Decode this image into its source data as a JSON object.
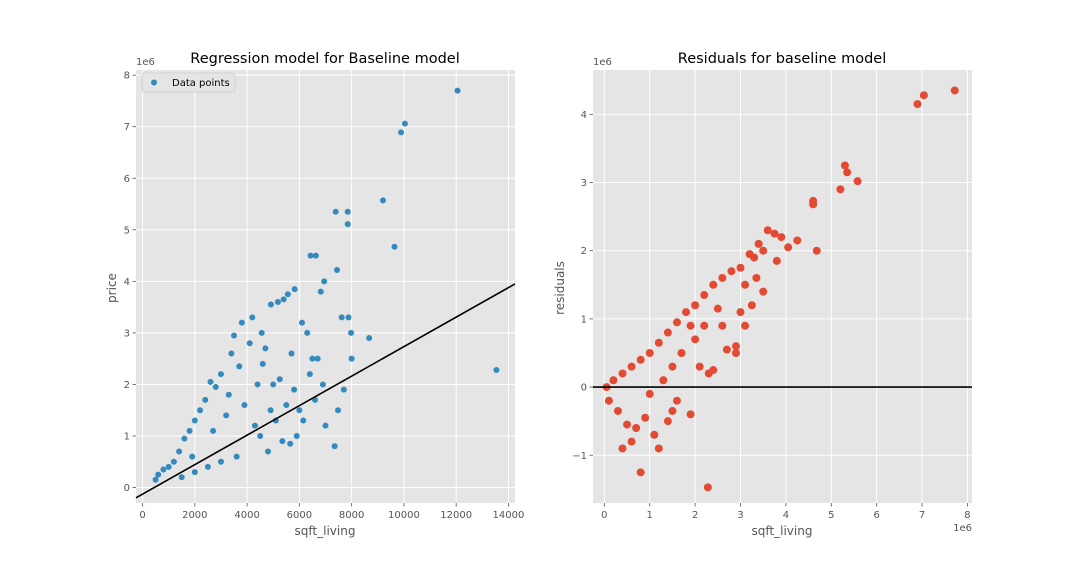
{
  "chart_data": [
    {
      "type": "scatter",
      "title": "Regression model for Baseline model",
      "xlabel": "sqft_living",
      "ylabel": "price",
      "y_offset_label": "1e6",
      "xlim": [
        -250,
        14250
      ],
      "ylim": [
        -0.3,
        8.1
      ],
      "x_ticks": [
        0,
        2000,
        4000,
        6000,
        8000,
        10000,
        12000,
        14000
      ],
      "x_tick_labels": [
        "0",
        "2000",
        "4000",
        "6000",
        "8000",
        "10000",
        "12000",
        "14000"
      ],
      "y_ticks": [
        0,
        1,
        2,
        3,
        4,
        5,
        6,
        7,
        8
      ],
      "y_tick_labels": [
        "0",
        "1",
        "2",
        "3",
        "4",
        "5",
        "6",
        "7",
        "8"
      ],
      "grid": true,
      "legend": {
        "entries": [
          "Data points"
        ],
        "placement": "top-left"
      },
      "series": [
        {
          "name": "Data points",
          "color": "#348abd",
          "points": [
            [
              12050,
              7.7
            ],
            [
              10040,
              7.06
            ],
            [
              9890,
              6.89
            ],
            [
              9200,
              5.57
            ],
            [
              7390,
              5.35
            ],
            [
              7850,
              5.35
            ],
            [
              7850,
              5.11
            ],
            [
              9640,
              4.67
            ],
            [
              6430,
              4.5
            ],
            [
              6630,
              4.5
            ],
            [
              7440,
              4.22
            ],
            [
              6950,
              4.0
            ],
            [
              6820,
              3.8
            ],
            [
              13540,
              2.28
            ],
            [
              8670,
              2.9
            ],
            [
              7620,
              3.3
            ],
            [
              7880,
              3.3
            ],
            [
              7980,
              3.0
            ],
            [
              8000,
              2.5
            ],
            [
              7700,
              1.9
            ],
            [
              7480,
              1.5
            ],
            [
              7350,
              0.8
            ],
            [
              7000,
              1.2
            ],
            [
              6900,
              2.0
            ],
            [
              6700,
              2.5
            ],
            [
              6500,
              2.5
            ],
            [
              6300,
              3.0
            ],
            [
              6100,
              3.2
            ],
            [
              5820,
              3.85
            ],
            [
              5560,
              3.75
            ],
            [
              5400,
              3.65
            ],
            [
              5180,
              3.6
            ],
            [
              4910,
              3.55
            ],
            [
              4560,
              3.0
            ],
            [
              4200,
              3.3
            ],
            [
              3800,
              3.2
            ],
            [
              3500,
              2.95
            ],
            [
              5100,
              1.3
            ],
            [
              5250,
              2.1
            ],
            [
              6150,
              1.3
            ],
            [
              5650,
              0.85
            ],
            [
              4800,
              0.7
            ],
            [
              5350,
              0.9
            ],
            [
              4600,
              2.4
            ],
            [
              4100,
              2.8
            ],
            [
              3700,
              2.35
            ],
            [
              3000,
              2.2
            ],
            [
              2800,
              1.95
            ],
            [
              2600,
              2.05
            ],
            [
              2400,
              1.7
            ],
            [
              2200,
              1.5
            ],
            [
              2000,
              1.3
            ],
            [
              1800,
              1.1
            ],
            [
              1600,
              0.95
            ],
            [
              1400,
              0.7
            ],
            [
              1200,
              0.5
            ],
            [
              1000,
              0.4
            ],
            [
              800,
              0.35
            ],
            [
              600,
              0.25
            ],
            [
              500,
              0.15
            ],
            [
              3300,
              1.8
            ],
            [
              3900,
              1.6
            ],
            [
              4300,
              1.2
            ],
            [
              4500,
              1.0
            ],
            [
              3600,
              0.6
            ],
            [
              3000,
              0.5
            ],
            [
              2500,
              0.4
            ],
            [
              2000,
              0.3
            ],
            [
              1500,
              0.2
            ],
            [
              3400,
              2.6
            ],
            [
              4400,
              2.0
            ],
            [
              5500,
              1.6
            ],
            [
              5800,
              1.9
            ],
            [
              6000,
              1.5
            ],
            [
              5900,
              1.0
            ],
            [
              4900,
              1.5
            ],
            [
              4700,
              2.7
            ],
            [
              3200,
              1.4
            ],
            [
              2700,
              1.1
            ],
            [
              1900,
              0.6
            ],
            [
              6400,
              2.2
            ],
            [
              6600,
              1.7
            ],
            [
              5700,
              2.6
            ],
            [
              5000,
              2.0
            ]
          ]
        },
        {
          "name": "",
          "type": "line",
          "color": "#000000",
          "points": [
            [
              -250,
              -0.2
            ],
            [
              14250,
              3.95
            ]
          ]
        }
      ]
    },
    {
      "type": "scatter",
      "title": "Residuals for baseline model",
      "xlabel": "sqft_living",
      "ylabel": "residuals",
      "x_offset_label": "1e6",
      "y_offset_label": "1e6",
      "xlim": [
        -0.25,
        8.1
      ],
      "ylim": [
        -1.7,
        4.65
      ],
      "x_ticks": [
        0,
        1,
        2,
        3,
        4,
        5,
        6,
        7,
        8
      ],
      "x_tick_labels": [
        "0",
        "1",
        "2",
        "3",
        "4",
        "5",
        "6",
        "7",
        "8"
      ],
      "y_ticks": [
        -1,
        0,
        1,
        2,
        3,
        4
      ],
      "y_tick_labels": [
        "−1",
        "0",
        "1",
        "2",
        "3",
        "4"
      ],
      "grid": true,
      "series": [
        {
          "color": "#e24a33",
          "points": [
            [
              7.72,
              4.35
            ],
            [
              7.04,
              4.28
            ],
            [
              6.9,
              4.15
            ],
            [
              5.3,
              3.25
            ],
            [
              5.35,
              3.15
            ],
            [
              5.58,
              3.02
            ],
            [
              5.2,
              2.9
            ],
            [
              4.6,
              2.73
            ],
            [
              4.6,
              2.68
            ],
            [
              4.25,
              2.15
            ],
            [
              4.05,
              2.05
            ],
            [
              4.68,
              2.0
            ],
            [
              3.75,
              2.25
            ],
            [
              3.6,
              2.3
            ],
            [
              3.5,
              2.0
            ],
            [
              3.3,
              1.9
            ],
            [
              3.8,
              1.85
            ],
            [
              3.35,
              1.6
            ],
            [
              3.1,
              1.5
            ],
            [
              3.25,
              1.2
            ],
            [
              3.0,
              1.1
            ],
            [
              2.9,
              0.6
            ],
            [
              2.7,
              0.55
            ],
            [
              2.9,
              0.5
            ],
            [
              3.1,
              0.9
            ],
            [
              2.4,
              0.25
            ],
            [
              2.3,
              0.2
            ],
            [
              2.28,
              -1.47
            ],
            [
              1.9,
              -0.4
            ],
            [
              1.6,
              -0.2
            ],
            [
              1.5,
              -0.35
            ],
            [
              0.8,
              -1.25
            ],
            [
              0.6,
              -0.8
            ],
            [
              0.5,
              -0.55
            ],
            [
              0.3,
              -0.35
            ],
            [
              0.1,
              -0.2
            ],
            [
              0.05,
              0.0
            ],
            [
              0.2,
              0.1
            ],
            [
              0.4,
              0.2
            ],
            [
              0.6,
              0.3
            ],
            [
              0.8,
              0.4
            ],
            [
              1.0,
              0.5
            ],
            [
              1.2,
              0.65
            ],
            [
              1.4,
              0.8
            ],
            [
              1.6,
              0.95
            ],
            [
              1.8,
              1.1
            ],
            [
              2.0,
              1.2
            ],
            [
              2.2,
              1.35
            ],
            [
              2.4,
              1.5
            ],
            [
              2.6,
              1.6
            ],
            [
              2.8,
              1.7
            ],
            [
              3.0,
              1.75
            ],
            [
              3.2,
              1.95
            ],
            [
              3.4,
              2.1
            ],
            [
              2.5,
              1.15
            ],
            [
              2.2,
              0.9
            ],
            [
              2.0,
              0.7
            ],
            [
              1.7,
              0.5
            ],
            [
              1.3,
              0.1
            ],
            [
              1.0,
              -0.1
            ],
            [
              0.9,
              -0.45
            ],
            [
              0.7,
              -0.6
            ],
            [
              1.1,
              -0.7
            ],
            [
              1.2,
              -0.9
            ],
            [
              0.4,
              -0.9
            ],
            [
              2.1,
              0.3
            ],
            [
              3.5,
              1.4
            ],
            [
              3.9,
              2.2
            ],
            [
              2.6,
              0.9
            ],
            [
              1.9,
              0.9
            ],
            [
              1.5,
              0.3
            ],
            [
              1.4,
              -0.5
            ]
          ]
        },
        {
          "name": "",
          "type": "hline",
          "color": "#000000",
          "y": 0
        }
      ]
    }
  ]
}
